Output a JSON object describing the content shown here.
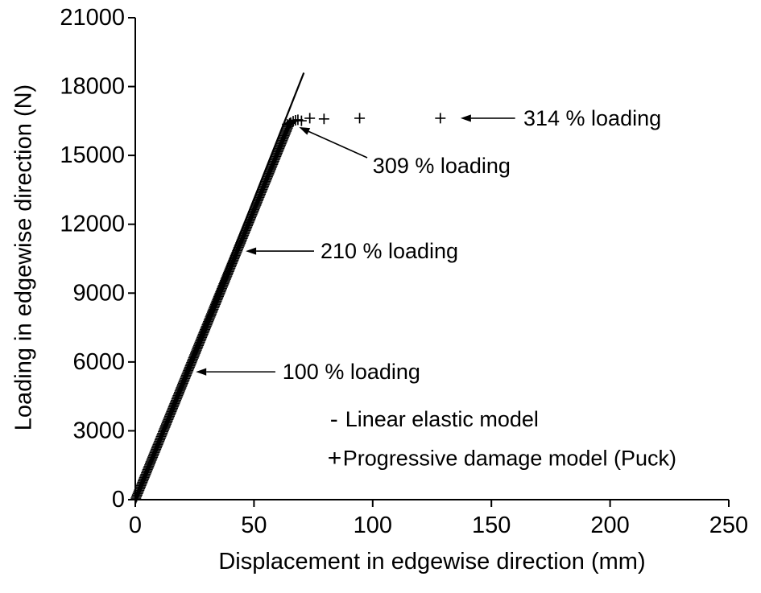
{
  "chart_data": {
    "type": "scatter",
    "title": "",
    "xlabel": "Displacement in edgewise direction (mm)",
    "ylabel": "Loading in edgewise direction (N)",
    "xlim": [
      0,
      250
    ],
    "ylim": [
      0,
      21000
    ],
    "x_ticks": [
      0,
      50,
      100,
      150,
      200,
      250
    ],
    "y_ticks": [
      0,
      3000,
      6000,
      9000,
      12000,
      15000,
      18000,
      21000
    ],
    "grid": false,
    "colors": {
      "foreground": "#000000",
      "background": "#ffffff"
    },
    "series": [
      {
        "name": "Linear elastic model",
        "type": "line",
        "marker": "-",
        "points": [
          [
            0,
            0
          ],
          [
            71,
            18600
          ]
        ]
      },
      {
        "name": "Progressive damage model (Puck)",
        "type": "scatter",
        "marker": "+",
        "ramp": {
          "from": [
            0,
            0
          ],
          "to": [
            65,
            16400
          ],
          "marker_count": 240
        },
        "points": [
          [
            64,
            16350
          ],
          [
            65.5,
            16430
          ],
          [
            66.5,
            16490
          ],
          [
            67.5,
            16530
          ],
          [
            68.5,
            16550
          ],
          [
            70,
            16510
          ],
          [
            73.5,
            16620
          ],
          [
            79.5,
            16590
          ],
          [
            94.5,
            16620
          ],
          [
            128.5,
            16620
          ]
        ]
      }
    ],
    "annotations": [
      {
        "label": "314 % loading",
        "tail": [
          160,
          16620
        ],
        "tip": [
          137,
          16620
        ],
        "text_pos": [
          163.5,
          16620
        ]
      },
      {
        "label": "309 % loading",
        "tail": [
          97.7,
          14900
        ],
        "tip": [
          69,
          16230
        ],
        "text_pos": [
          100,
          14550
        ]
      },
      {
        "label": "210 % loading",
        "tail": [
          75.3,
          10830
        ],
        "tip": [
          46.5,
          10830
        ],
        "text_pos": [
          78,
          10830
        ]
      },
      {
        "label": "100 % loading",
        "tail": [
          59,
          5570
        ],
        "tip": [
          25.5,
          5570
        ],
        "text_pos": [
          62,
          5570
        ]
      }
    ],
    "legend": {
      "position": "inside-bottom",
      "entries": [
        {
          "marker": "-",
          "label": "Linear elastic model",
          "pos": [
            82,
            3500
          ]
        },
        {
          "marker": "+",
          "label": "Progressive damage model (Puck)",
          "pos": [
            81,
            1800
          ]
        }
      ]
    }
  }
}
